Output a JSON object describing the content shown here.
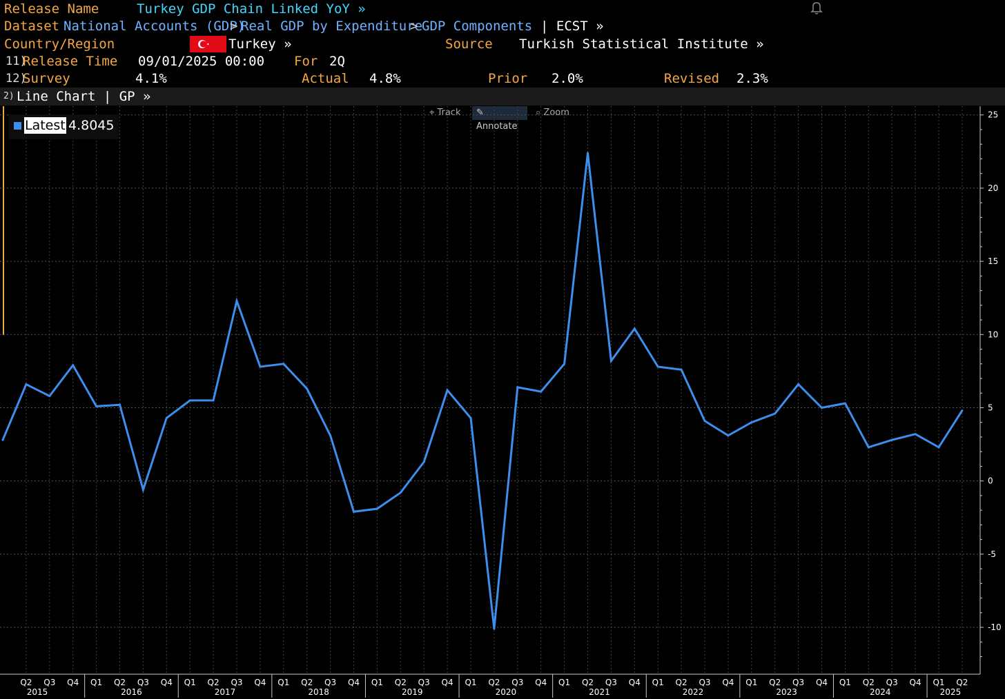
{
  "header": {
    "release_label": "Release Name",
    "release_value": "Turkey GDP Chain Linked YoY »",
    "dataset_label": "Dataset",
    "dataset_path": [
      {
        "label": "National Accounts (GDP)"
      },
      {
        "label": "Real GDP by Expenditure"
      },
      {
        "label": "GDP Components"
      }
    ],
    "dataset_sep": ">",
    "dataset_tail": "| ECST »",
    "country_label": "Country/Region",
    "country_value": "Turkey »",
    "source_label": "Source",
    "source_value": "Turkish Statistical Institute »",
    "release_time_num": "11)",
    "release_time_label": "Release Time",
    "release_time_value": "09/01/2025 00:00",
    "for_label": "For",
    "for_value": "2Q",
    "survey_num": "12)",
    "survey_label": "Survey",
    "survey_value": "4.1%",
    "actual_label": "Actual",
    "actual_value": "4.8%",
    "prior_label": "Prior",
    "prior_value": "2.0%",
    "revised_label": "Revised",
    "revised_value": "2.3%"
  },
  "chart_bar": {
    "num": "2)",
    "title": "Line Chart | GP »"
  },
  "tools": [
    {
      "label": "Track",
      "icon": "crosshair-icon"
    },
    {
      "label": "Annotate",
      "icon": "pencil-icon"
    },
    {
      "label": "Zoom",
      "icon": "magnifier-icon"
    }
  ],
  "legend": {
    "name": "Latest",
    "value": "4.8045"
  },
  "colors": {
    "line": "#3d8eed",
    "label": "#f5a742",
    "link": "#6fb2ff",
    "title": "#41d7ff",
    "flag": "#e30a17"
  },
  "chart_data": {
    "type": "line",
    "series": [
      {
        "name": "Latest",
        "x": [
          "2015 Q1",
          "2015 Q2",
          "2015 Q3",
          "2015 Q4",
          "2016 Q1",
          "2016 Q2",
          "2016 Q3",
          "2016 Q4",
          "2017 Q1",
          "2017 Q2",
          "2017 Q3",
          "2017 Q4",
          "2018 Q1",
          "2018 Q2",
          "2018 Q3",
          "2018 Q4",
          "2019 Q1",
          "2019 Q2",
          "2019 Q3",
          "2019 Q4",
          "2020 Q1",
          "2020 Q2",
          "2020 Q3",
          "2020 Q4",
          "2021 Q1",
          "2021 Q2",
          "2021 Q3",
          "2021 Q4",
          "2022 Q1",
          "2022 Q2",
          "2022 Q3",
          "2022 Q4",
          "2023 Q1",
          "2023 Q2",
          "2023 Q3",
          "2023 Q4",
          "2024 Q1",
          "2024 Q2",
          "2024 Q3",
          "2024 Q4",
          "2025 Q1",
          "2025 Q2"
        ],
        "values": [
          2.8,
          6.6,
          5.8,
          7.9,
          5.1,
          5.2,
          -0.6,
          4.3,
          5.5,
          5.5,
          12.3,
          7.8,
          8.0,
          6.3,
          3.1,
          -2.1,
          -1.9,
          -0.8,
          1.3,
          6.2,
          4.3,
          -10.1,
          6.4,
          6.1,
          8.0,
          22.4,
          8.2,
          10.4,
          7.8,
          7.6,
          4.1,
          3.1,
          4.0,
          4.6,
          6.6,
          5.0,
          5.3,
          2.3,
          2.8,
          3.2,
          2.3,
          4.8045
        ]
      }
    ],
    "y_ticks": [
      25,
      20,
      15,
      10,
      5,
      0,
      -5,
      -10
    ],
    "ylim": [
      -13.2,
      25.6
    ],
    "x_quarter_labels": [
      "Q2",
      "Q3",
      "Q4",
      "Q1",
      "Q2",
      "Q3",
      "Q4",
      "Q1",
      "Q2",
      "Q3",
      "Q4",
      "Q1",
      "Q2",
      "Q3",
      "Q4",
      "Q1",
      "Q2",
      "Q3",
      "Q4",
      "Q1",
      "Q2",
      "Q3",
      "Q4",
      "Q1",
      "Q2",
      "Q3",
      "Q4",
      "Q1",
      "Q2",
      "Q3",
      "Q4",
      "Q1",
      "Q2",
      "Q3",
      "Q4",
      "Q1",
      "Q2",
      "Q3",
      "Q4",
      "Q1",
      "Q2"
    ],
    "x_year_labels": [
      "2015",
      "2016",
      "2017",
      "2018",
      "2019",
      "2020",
      "2021",
      "2022",
      "2023",
      "2024",
      "2025"
    ],
    "grid": true,
    "y_axis_position": "right"
  }
}
